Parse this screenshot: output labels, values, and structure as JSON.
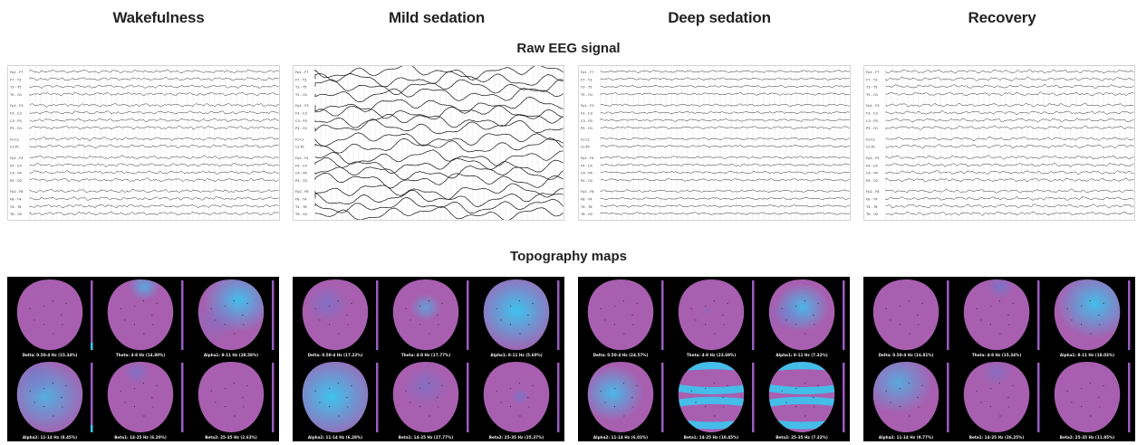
{
  "conditions": [
    {
      "label": "Wakefulness",
      "amp": 1.2,
      "freq": 0.55,
      "noise": 0.7,
      "topo_captions": [
        "Delta: 0.50-4 Hz (15.34%)",
        "Theta: 4-8 Hz (14.80%)",
        "Alpha1: 8-11 Hz (28.58%)",
        "Alpha2: 11-14 Hz (8.45%)",
        "Beta1: 14-25 Hz (6.20%)",
        "Beta2: 25-35 Hz (2.63%)"
      ]
    },
    {
      "label": "Mild sedation",
      "amp": 6.5,
      "freq": 0.12,
      "noise": 0.35,
      "topo_captions": [
        "Delta: 0.50-4 Hz (17.22%)",
        "Theta: 4-8 Hz (17.77%)",
        "Alpha1: 8-11 Hz (5.60%)",
        "Alpha2: 11-14 Hz (6.28%)",
        "Beta1: 14-25 Hz (27.77%)",
        "Beta2: 25-35 Hz (25.37%)"
      ]
    },
    {
      "label": "Deep sedation",
      "amp": 0.9,
      "freq": 0.5,
      "noise": 0.5,
      "topo_captions": [
        "Delta: 0.50-4 Hz (24.57%)",
        "Theta: 4-8 Hz (23.69%)",
        "Alpha1: 8-11 Hz (7.32%)",
        "Alpha2: 11-14 Hz (6.03%)",
        "Beta1: 14-25 Hz (10.45%)",
        "Beta2: 25-35 Hz (7.32%)"
      ]
    },
    {
      "label": "Recovery",
      "amp": 1.3,
      "freq": 0.5,
      "noise": 0.7,
      "topo_captions": [
        "Delta: 0.50-4 Hz (16.81%)",
        "Theta: 4-8 Hz (15.34%)",
        "Alpha1: 8-11 Hz (18.03%)",
        "Alpha2: 11-14 Hz (9.77%)",
        "Beta1: 14-25 Hz (26.25%)",
        "Beta2: 25-35 Hz (11.85%)"
      ]
    }
  ],
  "sections": {
    "raw_eeg": "Raw EEG signal",
    "topography": "Topography maps"
  },
  "channel_labels": [
    "Fp1 - F7",
    "F7 - T3",
    "T3 - T5",
    "T5 - O1",
    "Fp1 - F3",
    "F3 - C3",
    "C3 - P3",
    "P3 - O1",
    "Fz-Cz",
    "Cz-Pz",
    "Fp2 - F4",
    "F4 - C4",
    "C4 - P4",
    "P4 - O2",
    "Fp2 - F8",
    "F8 - T4",
    "T4 - T6",
    "T6 - O2"
  ],
  "colors": {
    "topo_base": "#a85fb0",
    "topo_high": "#38c8f0",
    "topo_mid": "#6a7ad0",
    "colorbar": "#9a5cc0"
  }
}
